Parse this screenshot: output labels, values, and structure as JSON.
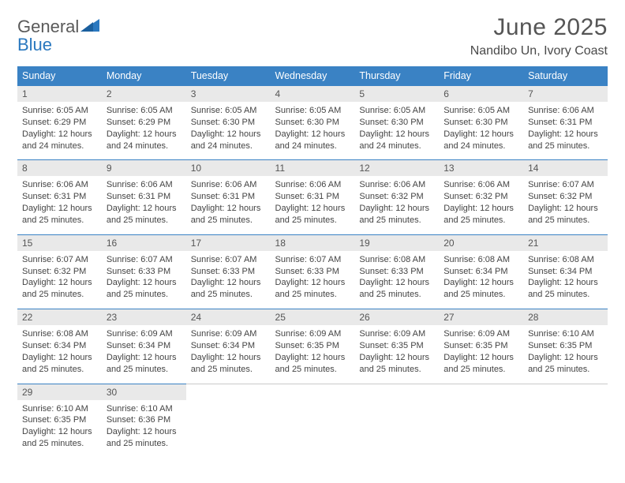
{
  "logo": {
    "text1": "General",
    "text2": "Blue"
  },
  "title": "June 2025",
  "location": "Nandibo Un, Ivory Coast",
  "colors": {
    "header_bg": "#3a82c4",
    "header_text": "#ffffff",
    "daynum_bg": "#e9e9e9",
    "divider": "#3a82c4",
    "logo_gray": "#5a5a5a",
    "logo_blue": "#2a78bf"
  },
  "typography": {
    "title_fontsize": 30,
    "location_fontsize": 16,
    "weekday_fontsize": 12.5,
    "daynum_fontsize": 12,
    "cell_fontsize": 11
  },
  "weekdays": [
    "Sunday",
    "Monday",
    "Tuesday",
    "Wednesday",
    "Thursday",
    "Friday",
    "Saturday"
  ],
  "labels": {
    "sunrise": "Sunrise:",
    "sunset": "Sunset:",
    "daylight": "Daylight:"
  },
  "days": [
    {
      "num": "1",
      "sunrise": "6:05 AM",
      "sunset": "6:29 PM",
      "daylight": "12 hours and 24 minutes."
    },
    {
      "num": "2",
      "sunrise": "6:05 AM",
      "sunset": "6:29 PM",
      "daylight": "12 hours and 24 minutes."
    },
    {
      "num": "3",
      "sunrise": "6:05 AM",
      "sunset": "6:30 PM",
      "daylight": "12 hours and 24 minutes."
    },
    {
      "num": "4",
      "sunrise": "6:05 AM",
      "sunset": "6:30 PM",
      "daylight": "12 hours and 24 minutes."
    },
    {
      "num": "5",
      "sunrise": "6:05 AM",
      "sunset": "6:30 PM",
      "daylight": "12 hours and 24 minutes."
    },
    {
      "num": "6",
      "sunrise": "6:05 AM",
      "sunset": "6:30 PM",
      "daylight": "12 hours and 24 minutes."
    },
    {
      "num": "7",
      "sunrise": "6:06 AM",
      "sunset": "6:31 PM",
      "daylight": "12 hours and 25 minutes."
    },
    {
      "num": "8",
      "sunrise": "6:06 AM",
      "sunset": "6:31 PM",
      "daylight": "12 hours and 25 minutes."
    },
    {
      "num": "9",
      "sunrise": "6:06 AM",
      "sunset": "6:31 PM",
      "daylight": "12 hours and 25 minutes."
    },
    {
      "num": "10",
      "sunrise": "6:06 AM",
      "sunset": "6:31 PM",
      "daylight": "12 hours and 25 minutes."
    },
    {
      "num": "11",
      "sunrise": "6:06 AM",
      "sunset": "6:31 PM",
      "daylight": "12 hours and 25 minutes."
    },
    {
      "num": "12",
      "sunrise": "6:06 AM",
      "sunset": "6:32 PM",
      "daylight": "12 hours and 25 minutes."
    },
    {
      "num": "13",
      "sunrise": "6:06 AM",
      "sunset": "6:32 PM",
      "daylight": "12 hours and 25 minutes."
    },
    {
      "num": "14",
      "sunrise": "6:07 AM",
      "sunset": "6:32 PM",
      "daylight": "12 hours and 25 minutes."
    },
    {
      "num": "15",
      "sunrise": "6:07 AM",
      "sunset": "6:32 PM",
      "daylight": "12 hours and 25 minutes."
    },
    {
      "num": "16",
      "sunrise": "6:07 AM",
      "sunset": "6:33 PM",
      "daylight": "12 hours and 25 minutes."
    },
    {
      "num": "17",
      "sunrise": "6:07 AM",
      "sunset": "6:33 PM",
      "daylight": "12 hours and 25 minutes."
    },
    {
      "num": "18",
      "sunrise": "6:07 AM",
      "sunset": "6:33 PM",
      "daylight": "12 hours and 25 minutes."
    },
    {
      "num": "19",
      "sunrise": "6:08 AM",
      "sunset": "6:33 PM",
      "daylight": "12 hours and 25 minutes."
    },
    {
      "num": "20",
      "sunrise": "6:08 AM",
      "sunset": "6:34 PM",
      "daylight": "12 hours and 25 minutes."
    },
    {
      "num": "21",
      "sunrise": "6:08 AM",
      "sunset": "6:34 PM",
      "daylight": "12 hours and 25 minutes."
    },
    {
      "num": "22",
      "sunrise": "6:08 AM",
      "sunset": "6:34 PM",
      "daylight": "12 hours and 25 minutes."
    },
    {
      "num": "23",
      "sunrise": "6:09 AM",
      "sunset": "6:34 PM",
      "daylight": "12 hours and 25 minutes."
    },
    {
      "num": "24",
      "sunrise": "6:09 AM",
      "sunset": "6:34 PM",
      "daylight": "12 hours and 25 minutes."
    },
    {
      "num": "25",
      "sunrise": "6:09 AM",
      "sunset": "6:35 PM",
      "daylight": "12 hours and 25 minutes."
    },
    {
      "num": "26",
      "sunrise": "6:09 AM",
      "sunset": "6:35 PM",
      "daylight": "12 hours and 25 minutes."
    },
    {
      "num": "27",
      "sunrise": "6:09 AM",
      "sunset": "6:35 PM",
      "daylight": "12 hours and 25 minutes."
    },
    {
      "num": "28",
      "sunrise": "6:10 AM",
      "sunset": "6:35 PM",
      "daylight": "12 hours and 25 minutes."
    },
    {
      "num": "29",
      "sunrise": "6:10 AM",
      "sunset": "6:35 PM",
      "daylight": "12 hours and 25 minutes."
    },
    {
      "num": "30",
      "sunrise": "6:10 AM",
      "sunset": "6:36 PM",
      "daylight": "12 hours and 25 minutes."
    }
  ]
}
